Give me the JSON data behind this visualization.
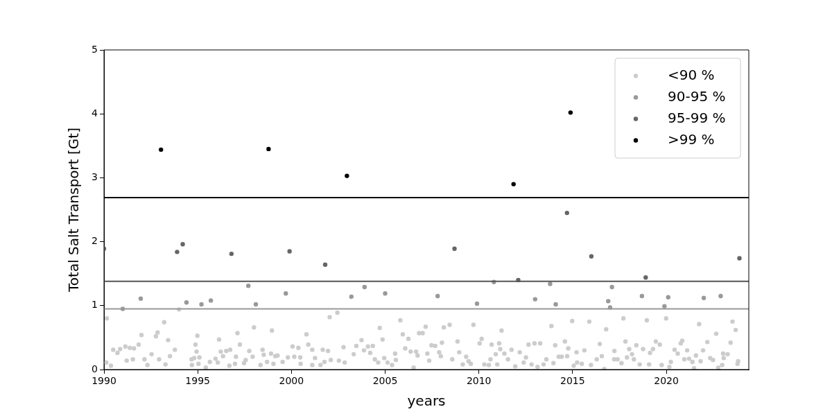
{
  "chart_data": {
    "type": "scatter",
    "xlabel": "years",
    "ylabel": "Total Salt Transport [Gt]",
    "xlim": [
      1990,
      2024.4
    ],
    "xticks": [
      1990,
      1995,
      2000,
      2005,
      2010,
      2015,
      2020
    ],
    "ylim": [
      0,
      5
    ],
    "yticks": [
      0,
      1,
      2,
      3,
      4,
      5
    ],
    "grid": false,
    "legend": "top right",
    "marker": "circle",
    "ref_lines": [
      {
        "axis": "y",
        "value": 2.69,
        "color": "#000000"
      },
      {
        "axis": "y",
        "value": 1.38,
        "color": "#555555"
      },
      {
        "axis": "y",
        "value": 0.95,
        "color": "#999999"
      }
    ],
    "series": [
      {
        "name": "<90 %",
        "color": "#cccccc",
        "x": [
          1990.15,
          1990.12,
          1990.37,
          1990.49,
          1990.72,
          1990.86,
          1991.14,
          1991.21,
          1991.38,
          1991.6,
          1991.54,
          1991.85,
          1992,
          1992.16,
          1992.32,
          1992.54,
          1992.77,
          1992.86,
          1992.94,
          1993.21,
          1993.28,
          1993.42,
          1993.52,
          1993.78,
          1994,
          1994.67,
          1994.69,
          1994.81,
          1994.88,
          1994.94,
          1994.98,
          1995.04,
          1995.09,
          1995.43,
          1995.65,
          1995.95,
          1996.07,
          1996.14,
          1996.23,
          1996.35,
          1996.52,
          1996.73,
          1996.69,
          1996.99,
          1997.04,
          1997.12,
          1997.25,
          1997.47,
          1997.56,
          1997.75,
          1997.93,
          1998,
          1998.35,
          1998.46,
          1998.52,
          1998.7,
          1998.91,
          1998.96,
          1999.04,
          1999.14,
          1999.26,
          1999.53,
          1999.81,
          2000.06,
          2000.15,
          2000.37,
          2000.47,
          2000.49,
          2000.8,
          2000.9,
          2001.11,
          2001.26,
          2001.11,
          2001.67,
          2001.95,
          2002.04,
          2002.45,
          2001.55,
          2001.76,
          2002.1,
          2002.53,
          2002.78,
          2002.84,
          2003.32,
          2003.46,
          2003.74,
          2003.87,
          2004.08,
          2004.2,
          2004.34,
          2004.45,
          2004.63,
          2004.71,
          2004.86,
          2004.95,
          2005.13,
          2005.37,
          2005.53,
          2005.57,
          2005.81,
          2005.94,
          2006.07,
          2006.24,
          2006.36,
          2006.52,
          2006.65,
          2006.73,
          2006.81,
          2007,
          2007.16,
          2007.25,
          2007.35,
          2007.47,
          2007.67,
          2007.88,
          2007.97,
          2008.03,
          2008.13,
          2008.44,
          2008.58,
          2008.86,
          2008.95,
          2009.14,
          2009.32,
          2009.45,
          2009.57,
          2009.71,
          2010.04,
          2010.15,
          2010.29,
          2010.53,
          2010.62,
          2010.68,
          2010.9,
          2010.98,
          2011.08,
          2011.14,
          2011.21,
          2011.36,
          2011.55,
          2011.74,
          2011.94,
          2012.18,
          2012.39,
          2012.51,
          2012.65,
          2012.81,
          2012.97,
          2013.27,
          2013.13,
          2013.45,
          2013.6,
          2013.87,
          2013.98,
          2014.07,
          2014.26,
          2014.42,
          2014.59,
          2014.71,
          2014.77,
          2014.98,
          2015.06,
          2015.21,
          2015.24,
          2015.49,
          2015.63,
          2015.89,
          2015.98,
          2016.29,
          2016.45,
          2016.56,
          2016.79,
          2016.69,
          2017.22,
          2017.23,
          2017.4,
          2017.61,
          2017.71,
          2017.82,
          2017.9,
          2018.02,
          2018.17,
          2018.27,
          2018.4,
          2018.58,
          2018.76,
          2018.96,
          2019.08,
          2019.13,
          2019.29,
          2019.44,
          2019.65,
          2019.75,
          2019.99,
          2020.16,
          2020.24,
          2020.44,
          2020.61,
          2020.77,
          2020.85,
          2020.96,
          2021.11,
          2021.21,
          2021.39,
          2021.48,
          2021.58,
          2021.75,
          2021.83,
          2021.96,
          2022.19,
          2022.34,
          2022.49,
          2022.66,
          2022.77,
          2022.98,
          2023.06,
          2023.03,
          2023.27,
          2023.43,
          2023.53,
          2023.7,
          2023.8,
          2023.83
        ],
        "values": [
          0.8,
          0.11,
          0.06,
          0.31,
          0.26,
          0.32,
          0.36,
          0.14,
          0.34,
          0.33,
          0.16,
          0.39,
          0.54,
          0.16,
          0.07,
          0.24,
          0.52,
          0.58,
          0.16,
          0.74,
          0.08,
          0.46,
          0.21,
          0.31,
          0.94,
          0.16,
          0.07,
          0.18,
          0.39,
          0.28,
          0.53,
          0.09,
          0.19,
          0.03,
          0.12,
          0.17,
          0.11,
          0.47,
          0.28,
          0.21,
          0.29,
          0.31,
          0.06,
          0.09,
          0.2,
          0.57,
          0.39,
          0.1,
          0.15,
          0.29,
          0.2,
          0.66,
          0.07,
          0.31,
          0.23,
          0.12,
          0.25,
          0.61,
          0.09,
          0.21,
          0.22,
          0.12,
          0.19,
          0.36,
          0.2,
          0.34,
          0.19,
          0.09,
          0.55,
          0.39,
          0.31,
          0.18,
          0.07,
          0.31,
          0.29,
          0.82,
          0.89,
          0.07,
          0.12,
          0.15,
          0.14,
          0.35,
          0.11,
          0.24,
          0.37,
          0.46,
          0.3,
          0.36,
          0.26,
          0.37,
          0.16,
          0.11,
          0.65,
          0.47,
          0.18,
          0.11,
          0.07,
          0.25,
          0.15,
          0.77,
          0.55,
          0.33,
          0.48,
          0.28,
          0.03,
          0.28,
          0.22,
          0.57,
          0.57,
          0.67,
          0.25,
          0.14,
          0.38,
          0.37,
          0.27,
          0.21,
          0.42,
          0.66,
          0.7,
          0.16,
          0.44,
          0.27,
          0.08,
          0.2,
          0.13,
          0.09,
          0.7,
          0.41,
          0.48,
          0.08,
          0.07,
          0.16,
          0.39,
          0.24,
          0.08,
          0.41,
          0.32,
          0.61,
          0.25,
          0.16,
          0.31,
          0.05,
          0.27,
          0.11,
          0.19,
          0.39,
          0.08,
          0.41,
          0.41,
          0.04,
          0.08,
          0.16,
          0.68,
          0.1,
          0.38,
          0.2,
          0.2,
          0.44,
          0.21,
          0.33,
          0.76,
          0.06,
          0.27,
          0.11,
          0.09,
          0.3,
          0.75,
          0.07,
          0.16,
          0.4,
          0.21,
          0.63,
          0.01,
          0.16,
          0.29,
          0.16,
          0.1,
          0.8,
          0.44,
          0.19,
          0.32,
          0.24,
          0.16,
          0.38,
          0.08,
          0.32,
          0.77,
          0.08,
          0.26,
          0.32,
          0.44,
          0.39,
          0.07,
          0.8,
          0.04,
          0.12,
          0.31,
          0.25,
          0.41,
          0.45,
          0.16,
          0.3,
          0.17,
          0.12,
          0.02,
          0.22,
          0.71,
          0.13,
          0.3,
          0.43,
          0.18,
          0.15,
          0.56,
          0.03,
          0.07,
          0.18,
          0.25,
          0.24,
          0.42,
          0.75,
          0.62,
          0.09,
          0.13
        ]
      },
      {
        "name": "90-95 %",
        "color": "#999999",
        "x": [
          1991,
          1991.96,
          1994.4,
          1995.2,
          1995.7,
          1997.7,
          1998.1,
          1999.7,
          2003.2,
          2003.9,
          2005,
          2007.8,
          2009.9,
          2010.8,
          2013,
          2013.8,
          2014.1,
          2016.9,
          2017,
          2017.1,
          2018.7,
          2019.9,
          2020.1,
          2022,
          2022.9
        ],
        "values": [
          0.95,
          1.11,
          1.05,
          1.02,
          1.08,
          1.31,
          1.02,
          1.19,
          1.14,
          1.29,
          1.19,
          1.15,
          1.03,
          1.37,
          1.1,
          1.34,
          1.02,
          1.07,
          0.97,
          1.29,
          1.15,
          0.99,
          1.13,
          1.12,
          1.15
        ]
      },
      {
        "name": "95-99 %",
        "color": "#666666",
        "x": [
          1990,
          1993.9,
          1994.2,
          1996.8,
          1999.9,
          2001.8,
          2008.7,
          2012.1,
          2014.7,
          2016,
          2018.9,
          2023.9
        ],
        "values": [
          1.89,
          1.84,
          1.96,
          1.81,
          1.85,
          1.64,
          1.89,
          1.4,
          2.45,
          1.77,
          1.44,
          1.74
        ]
      },
      {
        "name": ">99 %",
        "color": "#000000",
        "x": [
          1993.04,
          1998.78,
          2002.96,
          2011.85,
          2014.89
        ],
        "values": [
          3.44,
          3.45,
          3.03,
          2.9,
          4.02
        ]
      }
    ]
  }
}
